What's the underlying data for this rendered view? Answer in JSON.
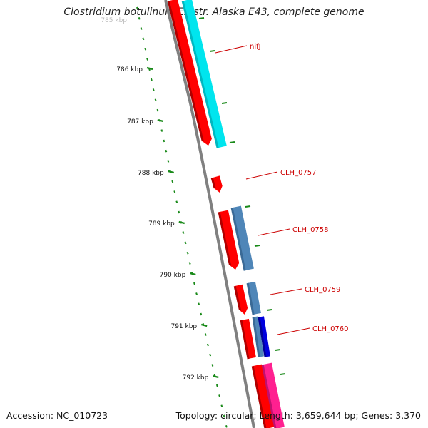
{
  "title": "Clostridium botulinum E3 str. Alaska E43, complete genome",
  "footer": {
    "accession": "Accession: NC_010723",
    "summary": "Topology: circular; Length: 3,659,644 bp; Genes: 3,370"
  },
  "colors": {
    "tick": "#1a8a1a",
    "backbone": "#808080",
    "cds_forward": "#ff0000",
    "cds_forward_shade": "#b00000",
    "label": "#cc0000",
    "cyan_feature": "#00e5ee",
    "steelblue_feature": "#4f86b8",
    "blue_feature": "#0000dd",
    "pink_feature": "#ff2090"
  },
  "scale": {
    "partial_label": "785 kbp",
    "ticks": [
      {
        "label": "786 kbp"
      },
      {
        "label": "787 kbp"
      },
      {
        "label": "788 kbp"
      },
      {
        "label": "789 kbp"
      },
      {
        "label": "790 kbp"
      },
      {
        "label": "791 kbp"
      },
      {
        "label": "792 kbp"
      }
    ]
  },
  "genes": [
    {
      "label": "nifJ"
    },
    {
      "label": "CLH_0757"
    },
    {
      "label": "CLH_0758"
    },
    {
      "label": "CLH_0759"
    },
    {
      "label": "CLH_0760"
    }
  ]
}
